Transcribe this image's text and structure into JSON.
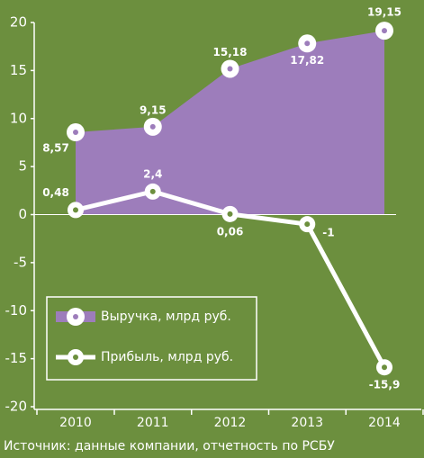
{
  "chart_data": {
    "type": "line",
    "categories": [
      "2010",
      "2011",
      "2012",
      "2013",
      "2014"
    ],
    "series": [
      {
        "name": "Выручка, млрд руб.",
        "color": "#9d7dbb",
        "fill": "area",
        "values": [
          8.57,
          9.15,
          15.18,
          17.82,
          19.15
        ],
        "value_labels": [
          "8,57",
          "9,15",
          "15,18",
          "17,82",
          "19,15"
        ]
      },
      {
        "name": "Прибыль, млрд руб.",
        "color": "#ffffff",
        "values": [
          0.48,
          2.4,
          0.06,
          -1,
          -15.9
        ],
        "value_labels": [
          "0,48",
          "2,4",
          "0,06",
          "-1",
          "-15,9"
        ]
      }
    ],
    "ylim": [
      -20,
      20
    ],
    "yticks": [
      -20,
      -15,
      -10,
      -5,
      0,
      5,
      10,
      15,
      20
    ],
    "legend": "lower left",
    "source": "Источник: данные компании, отчетность по РСБУ"
  }
}
